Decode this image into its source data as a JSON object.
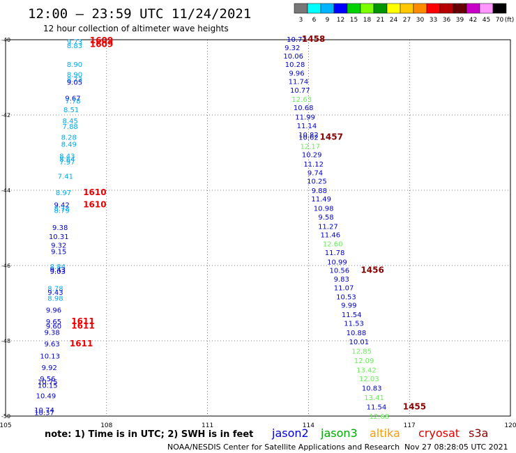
{
  "header": {
    "title": "12:00 – 23:59 UTC 11/24/2021",
    "subtitle": "12 hour collection of altimeter wave heights"
  },
  "colorbar": {
    "labels": [
      "3",
      "6",
      "9",
      "12",
      "15",
      "18",
      "21",
      "24",
      "27",
      "30",
      "33",
      "36",
      "39",
      "42",
      "45",
      "70",
      "(ft)"
    ],
    "colors": [
      "#777777",
      "#00ffff",
      "#00b4ff",
      "#0000ff",
      "#00d200",
      "#7cff00",
      "#009600",
      "#ffff00",
      "#ffc800",
      "#ff8c00",
      "#ff0000",
      "#b40000",
      "#640000",
      "#c800c8",
      "#ff96ff",
      "#000000"
    ]
  },
  "footer": {
    "note": "note:  1) Time is in UTC;  2) SWH is in feet",
    "credit": "NOAA/NESDIS Center for Satellite Applications and Research",
    "timestamp": "Nov 27 08:28:05 UTC 2021"
  },
  "legend": [
    {
      "name": "jason2",
      "color": "#0000dd"
    },
    {
      "name": "jason3",
      "color": "#00aa00"
    },
    {
      "name": "altika",
      "color": "#ff9900"
    },
    {
      "name": "cryosat",
      "color": "#dd0000"
    },
    {
      "name": "s3a",
      "color": "#880000"
    }
  ],
  "colors": {
    "blue": "#0000cc",
    "cyan": "#00aaee",
    "green": "#66ee55",
    "red": "#ee0000",
    "darkred": "#880000"
  },
  "chart_data": {
    "type": "scatter",
    "xlim": [
      105,
      120
    ],
    "ylim": [
      -50,
      -40
    ],
    "xticks": [
      "105",
      "108",
      "111",
      "114",
      "117",
      "120"
    ],
    "yticks": [
      "-40",
      "-42",
      "-44",
      "-46",
      "-48",
      "-50"
    ],
    "grid": true,
    "points": [
      {
        "x": 107.05,
        "y": -40.05,
        "label": "9.73",
        "c": "cyan"
      },
      {
        "x": 107.05,
        "y": -40.15,
        "label": "8.83",
        "c": "cyan"
      },
      {
        "x": 107.05,
        "y": -40.65,
        "label": "8.90",
        "c": "cyan"
      },
      {
        "x": 107.05,
        "y": -40.92,
        "label": "8.90",
        "c": "cyan"
      },
      {
        "x": 107.05,
        "y": -41.05,
        "label": "8.73",
        "c": "cyan"
      },
      {
        "x": 107.05,
        "y": -41.12,
        "label": "9.05",
        "c": "blue"
      },
      {
        "x": 107.0,
        "y": -41.55,
        "label": "9.67",
        "c": "blue"
      },
      {
        "x": 107.0,
        "y": -41.62,
        "label": "7.78",
        "c": "cyan"
      },
      {
        "x": 106.95,
        "y": -41.85,
        "label": "8.51",
        "c": "cyan"
      },
      {
        "x": 106.92,
        "y": -42.15,
        "label": "8.45",
        "c": "cyan"
      },
      {
        "x": 106.92,
        "y": -42.3,
        "label": "7.88",
        "c": "cyan"
      },
      {
        "x": 106.88,
        "y": -42.58,
        "label": "8.28",
        "c": "cyan"
      },
      {
        "x": 106.88,
        "y": -42.77,
        "label": "8.49",
        "c": "cyan"
      },
      {
        "x": 106.83,
        "y": -43.08,
        "label": "8.43",
        "c": "cyan"
      },
      {
        "x": 106.83,
        "y": -43.17,
        "label": "8.64",
        "c": "cyan"
      },
      {
        "x": 106.83,
        "y": -43.24,
        "label": "7.97",
        "c": "cyan"
      },
      {
        "x": 106.78,
        "y": -43.62,
        "label": "7.41",
        "c": "cyan"
      },
      {
        "x": 106.72,
        "y": -44.06,
        "label": "8.97",
        "c": "cyan"
      },
      {
        "x": 106.67,
        "y": -44.38,
        "label": "9.42",
        "c": "blue"
      },
      {
        "x": 106.67,
        "y": -44.47,
        "label": "8.72",
        "c": "cyan"
      },
      {
        "x": 106.67,
        "y": -44.53,
        "label": "8.79",
        "c": "cyan"
      },
      {
        "x": 106.62,
        "y": -44.98,
        "label": "9.38",
        "c": "blue"
      },
      {
        "x": 106.58,
        "y": -45.22,
        "label": "10.31",
        "c": "blue"
      },
      {
        "x": 106.58,
        "y": -45.45,
        "label": "9.32",
        "c": "blue"
      },
      {
        "x": 106.58,
        "y": -45.62,
        "label": "9.15",
        "c": "blue"
      },
      {
        "x": 106.55,
        "y": -46.02,
        "label": "8.84",
        "c": "cyan"
      },
      {
        "x": 106.55,
        "y": -46.1,
        "label": "9.43",
        "c": "blue"
      },
      {
        "x": 106.55,
        "y": -46.15,
        "label": "9.03",
        "c": "blue"
      },
      {
        "x": 106.48,
        "y": -46.6,
        "label": "8.78",
        "c": "cyan"
      },
      {
        "x": 106.48,
        "y": -46.7,
        "label": "9.43",
        "c": "blue"
      },
      {
        "x": 106.48,
        "y": -46.86,
        "label": "8.98",
        "c": "cyan"
      },
      {
        "x": 106.43,
        "y": -47.18,
        "label": "9.96",
        "c": "blue"
      },
      {
        "x": 106.43,
        "y": -47.48,
        "label": "9.65",
        "c": "blue"
      },
      {
        "x": 106.43,
        "y": -47.6,
        "label": "9.60",
        "c": "blue"
      },
      {
        "x": 106.38,
        "y": -47.77,
        "label": "9.38",
        "c": "blue"
      },
      {
        "x": 106.38,
        "y": -48.07,
        "label": "9.63",
        "c": "blue"
      },
      {
        "x": 106.32,
        "y": -48.4,
        "label": "10.13",
        "c": "blue"
      },
      {
        "x": 106.3,
        "y": -48.7,
        "label": "9.92",
        "c": "blue"
      },
      {
        "x": 106.25,
        "y": -49.0,
        "label": "9.56",
        "c": "blue"
      },
      {
        "x": 106.25,
        "y": -49.08,
        "label": "10.75",
        "c": "blue"
      },
      {
        "x": 106.25,
        "y": -49.18,
        "label": "10.15",
        "c": "blue"
      },
      {
        "x": 106.2,
        "y": -49.45,
        "label": "10.49",
        "c": "blue"
      },
      {
        "x": 106.15,
        "y": -49.83,
        "label": "10.74",
        "c": "blue"
      },
      {
        "x": 106.15,
        "y": -49.9,
        "label": "10.37",
        "c": "blue"
      },
      {
        "x": 113.65,
        "y": -39.98,
        "label": "10.72",
        "c": "blue"
      },
      {
        "x": 113.52,
        "y": -40.2,
        "label": "9.32",
        "c": "blue"
      },
      {
        "x": 113.55,
        "y": -40.43,
        "label": "10.06",
        "c": "blue"
      },
      {
        "x": 113.6,
        "y": -40.65,
        "label": "10.28",
        "c": "blue"
      },
      {
        "x": 113.65,
        "y": -40.88,
        "label": "9.96",
        "c": "blue"
      },
      {
        "x": 113.7,
        "y": -41.1,
        "label": "11.74",
        "c": "blue"
      },
      {
        "x": 113.75,
        "y": -41.33,
        "label": "10.77",
        "c": "blue"
      },
      {
        "x": 113.8,
        "y": -41.57,
        "label": "12.63",
        "c": "green"
      },
      {
        "x": 113.85,
        "y": -41.8,
        "label": "10.68",
        "c": "blue"
      },
      {
        "x": 113.9,
        "y": -42.05,
        "label": "11.99",
        "c": "blue"
      },
      {
        "x": 113.95,
        "y": -42.28,
        "label": "11.14",
        "c": "blue"
      },
      {
        "x": 114.0,
        "y": -42.52,
        "label": "10.82",
        "c": "blue"
      },
      {
        "x": 114.0,
        "y": -42.58,
        "label": "10.62",
        "c": "blue"
      },
      {
        "x": 114.05,
        "y": -42.82,
        "label": "12.17",
        "c": "green"
      },
      {
        "x": 114.1,
        "y": -43.05,
        "label": "10.29",
        "c": "blue"
      },
      {
        "x": 114.15,
        "y": -43.3,
        "label": "11.12",
        "c": "blue"
      },
      {
        "x": 114.2,
        "y": -43.53,
        "label": "9.74",
        "c": "blue"
      },
      {
        "x": 114.25,
        "y": -43.75,
        "label": "10.25",
        "c": "blue"
      },
      {
        "x": 114.32,
        "y": -44.0,
        "label": "9.88",
        "c": "blue"
      },
      {
        "x": 114.38,
        "y": -44.22,
        "label": "11.49",
        "c": "blue"
      },
      {
        "x": 114.45,
        "y": -44.47,
        "label": "10.98",
        "c": "blue"
      },
      {
        "x": 114.52,
        "y": -44.7,
        "label": "9.58",
        "c": "blue"
      },
      {
        "x": 114.58,
        "y": -44.95,
        "label": "11.27",
        "c": "blue"
      },
      {
        "x": 114.65,
        "y": -45.18,
        "label": "11.46",
        "c": "blue"
      },
      {
        "x": 114.72,
        "y": -45.42,
        "label": "12.60",
        "c": "green"
      },
      {
        "x": 114.78,
        "y": -45.65,
        "label": "11.78",
        "c": "blue"
      },
      {
        "x": 114.85,
        "y": -45.9,
        "label": "10.99",
        "c": "blue"
      },
      {
        "x": 114.92,
        "y": -46.12,
        "label": "10.56",
        "c": "blue"
      },
      {
        "x": 114.98,
        "y": -46.35,
        "label": "9.83",
        "c": "blue"
      },
      {
        "x": 115.05,
        "y": -46.58,
        "label": "11.07",
        "c": "blue"
      },
      {
        "x": 115.12,
        "y": -46.82,
        "label": "10.53",
        "c": "blue"
      },
      {
        "x": 115.2,
        "y": -47.05,
        "label": "9.99",
        "c": "blue"
      },
      {
        "x": 115.28,
        "y": -47.3,
        "label": "11.54",
        "c": "blue"
      },
      {
        "x": 115.35,
        "y": -47.53,
        "label": "11.53",
        "c": "blue"
      },
      {
        "x": 115.42,
        "y": -47.78,
        "label": "10.88",
        "c": "blue"
      },
      {
        "x": 115.5,
        "y": -48.02,
        "label": "10.01",
        "c": "blue"
      },
      {
        "x": 115.58,
        "y": -48.27,
        "label": "12.85",
        "c": "green"
      },
      {
        "x": 115.65,
        "y": -48.52,
        "label": "12.09",
        "c": "green"
      },
      {
        "x": 115.72,
        "y": -48.77,
        "label": "13.42",
        "c": "green"
      },
      {
        "x": 115.8,
        "y": -49.0,
        "label": "12.03",
        "c": "green"
      },
      {
        "x": 115.88,
        "y": -49.25,
        "label": "10.83",
        "c": "blue"
      },
      {
        "x": 115.95,
        "y": -49.5,
        "label": "13.41",
        "c": "green"
      },
      {
        "x": 116.02,
        "y": -49.75,
        "label": "11.54",
        "c": "blue"
      },
      {
        "x": 116.1,
        "y": -50.0,
        "label": "12.68",
        "c": "green"
      }
    ],
    "time_labels": [
      {
        "x": 107.85,
        "y": -40.02,
        "label": "1609",
        "c": "red"
      },
      {
        "x": 107.85,
        "y": -40.12,
        "label": "1609",
        "c": "red"
      },
      {
        "x": 107.65,
        "y": -44.06,
        "label": "1610",
        "c": "red"
      },
      {
        "x": 107.65,
        "y": -44.38,
        "label": "1610",
        "c": "red"
      },
      {
        "x": 107.3,
        "y": -47.48,
        "label": "1611",
        "c": "red"
      },
      {
        "x": 107.3,
        "y": -47.6,
        "label": "1611",
        "c": "red"
      },
      {
        "x": 107.25,
        "y": -48.07,
        "label": "1611",
        "c": "red"
      },
      {
        "x": 114.15,
        "y": -39.98,
        "label": "1458",
        "c": "darkred"
      },
      {
        "x": 114.68,
        "y": -42.58,
        "label": "1457",
        "c": "darkred"
      },
      {
        "x": 115.9,
        "y": -46.12,
        "label": "1456",
        "c": "darkred"
      },
      {
        "x": 117.15,
        "y": -49.75,
        "label": "1455",
        "c": "darkred"
      }
    ]
  }
}
